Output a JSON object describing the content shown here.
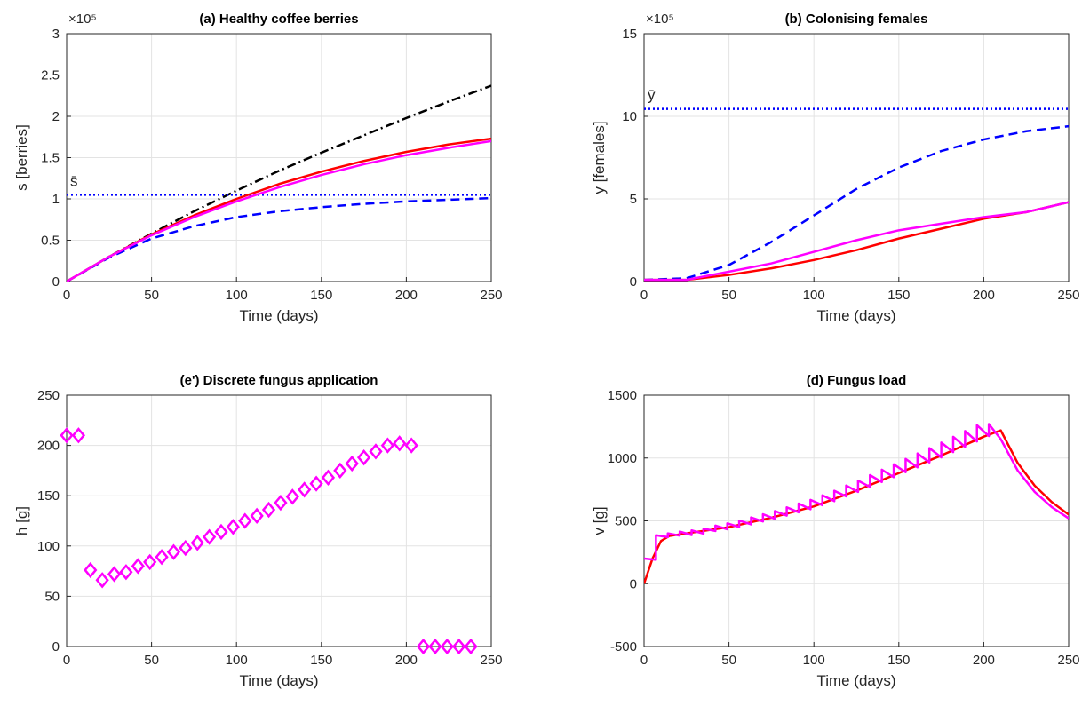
{
  "chart_data": [
    {
      "type": "line",
      "title": "(a) Healthy coffee berries",
      "xlabel": "Time (days)",
      "ylabel": "s [berries]",
      "y_exponent": "×10⁵",
      "x": [
        0,
        25,
        50,
        75,
        100,
        125,
        150,
        175,
        200,
        225,
        250
      ],
      "xlim": [
        0,
        250
      ],
      "xticks": [
        0,
        50,
        100,
        150,
        200,
        250
      ],
      "ylim": [
        0,
        3
      ],
      "yticks": [
        0,
        0.5,
        1,
        1.5,
        2,
        2.5,
        3
      ],
      "grid": true,
      "series": [
        {
          "color": "#000000",
          "style": "dashdot",
          "values": [
            0,
            0.3,
            0.58,
            0.85,
            1.1,
            1.34,
            1.56,
            1.77,
            1.98,
            2.18,
            2.37
          ]
        },
        {
          "color": "#0000ff",
          "style": "dashed",
          "values": [
            0,
            0.29,
            0.52,
            0.67,
            0.78,
            0.85,
            0.9,
            0.94,
            0.97,
            0.99,
            1.01
          ]
        },
        {
          "color": "#0000ff",
          "style": "dotted",
          "label": "s̄",
          "values": [
            1.05,
            1.05,
            1.05,
            1.05,
            1.05,
            1.05,
            1.05,
            1.05,
            1.05,
            1.05,
            1.05
          ]
        },
        {
          "color": "#ff0000",
          "style": "solid",
          "values": [
            0,
            0.3,
            0.57,
            0.8,
            1.0,
            1.18,
            1.33,
            1.46,
            1.57,
            1.66,
            1.73
          ]
        },
        {
          "color": "#ff00ff",
          "style": "solid",
          "values": [
            0,
            0.3,
            0.56,
            0.78,
            0.97,
            1.14,
            1.29,
            1.42,
            1.53,
            1.62,
            1.7
          ]
        }
      ]
    },
    {
      "type": "line",
      "title": "(b) Colonising females",
      "xlabel": "Time (days)",
      "ylabel": "y [females]",
      "y_exponent": "×10⁵",
      "x": [
        0,
        25,
        50,
        75,
        100,
        125,
        150,
        175,
        200,
        225,
        250
      ],
      "xlim": [
        0,
        250
      ],
      "xticks": [
        0,
        50,
        100,
        150,
        200,
        250
      ],
      "ylim": [
        0,
        15
      ],
      "yticks": [
        0,
        5,
        10,
        15
      ],
      "grid": true,
      "series": [
        {
          "color": "#0000ff",
          "style": "dashed",
          "values": [
            0.1,
            0.2,
            1.0,
            2.4,
            4.0,
            5.6,
            6.9,
            7.9,
            8.6,
            9.1,
            9.4
          ]
        },
        {
          "color": "#0000ff",
          "style": "dotted",
          "label": "ȳ",
          "values": [
            10.45,
            10.45,
            10.45,
            10.45,
            10.45,
            10.45,
            10.45,
            10.45,
            10.45,
            10.45,
            10.45
          ]
        },
        {
          "color": "#ff0000",
          "style": "solid",
          "values": [
            0.1,
            0.1,
            0.4,
            0.8,
            1.3,
            1.9,
            2.6,
            3.2,
            3.8,
            4.2,
            4.8
          ]
        },
        {
          "color": "#ff00ff",
          "style": "solid",
          "values": [
            0.1,
            0.1,
            0.6,
            1.1,
            1.8,
            2.5,
            3.1,
            3.5,
            3.9,
            4.2,
            4.8
          ]
        }
      ]
    },
    {
      "type": "scatter",
      "title": "(e') Discrete fungus application",
      "xlabel": "Time (days)",
      "ylabel": "h [g]",
      "xlim": [
        0,
        250
      ],
      "xticks": [
        0,
        50,
        100,
        150,
        200,
        250
      ],
      "ylim": [
        0,
        250
      ],
      "yticks": [
        0,
        50,
        100,
        150,
        200,
        250
      ],
      "grid": true,
      "series": [
        {
          "color": "#ff00ff",
          "marker": "diamond",
          "x": [
            0,
            7,
            14,
            21,
            28,
            35,
            42,
            49,
            56,
            63,
            70,
            77,
            84,
            91,
            98,
            105,
            112,
            119,
            126,
            133,
            140,
            147,
            154,
            161,
            168,
            175,
            182,
            189,
            196,
            203,
            210,
            217,
            224,
            231,
            238
          ],
          "values": [
            210,
            210,
            76,
            66,
            72,
            74,
            80,
            84,
            89,
            94,
            98,
            103,
            109,
            114,
            119,
            125,
            130,
            136,
            143,
            149,
            156,
            162,
            168,
            175,
            182,
            188,
            194,
            200,
            202,
            200,
            0,
            0,
            0,
            0,
            0
          ]
        }
      ]
    },
    {
      "type": "line",
      "title": "(d) Fungus load",
      "xlabel": "Time (days)",
      "ylabel": "v [g]",
      "xlim": [
        0,
        250
      ],
      "xticks": [
        0,
        50,
        100,
        150,
        200,
        250
      ],
      "ylim": [
        -500,
        1500
      ],
      "yticks": [
        -500,
        0,
        500,
        1000,
        1500
      ],
      "grid": true,
      "series": [
        {
          "color": "#ff0000",
          "style": "solid",
          "x": [
            0,
            5,
            10,
            15,
            25,
            50,
            75,
            100,
            125,
            150,
            175,
            200,
            210,
            220,
            230,
            240,
            250
          ],
          "values": [
            0,
            200,
            340,
            380,
            400,
            450,
            525,
            615,
            740,
            880,
            1020,
            1170,
            1220,
            960,
            780,
            650,
            550
          ]
        },
        {
          "color": "#ff00ff",
          "style": "solid",
          "x": [
            0,
            7,
            7,
            14,
            14,
            21,
            21,
            28,
            28,
            35,
            35,
            42,
            42,
            49,
            49,
            56,
            56,
            63,
            63,
            70,
            70,
            77,
            77,
            84,
            84,
            91,
            91,
            98,
            98,
            105,
            105,
            112,
            112,
            119,
            119,
            126,
            126,
            133,
            133,
            140,
            140,
            147,
            147,
            154,
            154,
            161,
            161,
            168,
            168,
            175,
            175,
            182,
            182,
            189,
            189,
            196,
            196,
            203,
            203,
            210,
            220,
            230,
            240,
            250
          ],
          "values": [
            200,
            190,
            385,
            370,
            400,
            382,
            415,
            387,
            424,
            398,
            438,
            419,
            462,
            433,
            480,
            451,
            502,
            472,
            527,
            495,
            553,
            516,
            578,
            542,
            608,
            568,
            638,
            593,
            667,
            625,
            703,
            657,
            739,
            695,
            781,
            730,
            820,
            770,
            864,
            809,
            907,
            848,
            950,
            887,
            993,
            926,
            1036,
            965,
            1079,
            1005,
            1123,
            1047,
            1169,
            1089,
            1215,
            1131,
            1261,
            1175,
            1270,
            1150,
            900,
            730,
            610,
            520
          ]
        }
      ]
    }
  ]
}
